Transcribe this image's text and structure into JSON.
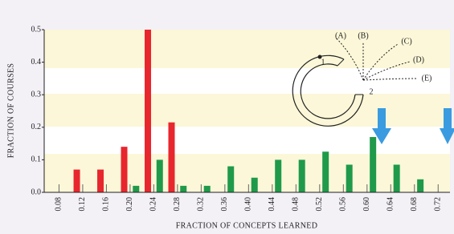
{
  "chart_data": {
    "type": "bar",
    "xlabel": "FRACTION OF CONCEPTS LEARNED",
    "ylabel": "FRACTION OF COURSES",
    "xlim": [
      0.055,
      0.74
    ],
    "ylim": [
      0,
      0.5
    ],
    "xticks": [
      0.08,
      0.12,
      0.16,
      {
        "value": 0.2,
        "label": "0.20"
      },
      0.24,
      0.28,
      0.32,
      0.36,
      {
        "value": 0.4,
        "label": "0.40"
      },
      0.44,
      0.48,
      0.52,
      0.56,
      {
        "value": 0.6,
        "label": "0.60"
      },
      0.64,
      0.68,
      0.72
    ],
    "yticks": [
      {
        "value": 0,
        "label": "0.0"
      },
      0.1,
      0.2,
      0.3,
      0.4,
      0.5
    ],
    "series": [
      {
        "color": "#e8262e",
        "x": [
          0.11,
          0.15,
          0.19,
          0.23,
          0.27
        ],
        "values": [
          0.07,
          0.07,
          0.14,
          0.5,
          0.215
        ]
      },
      {
        "color": "#1f9a4a",
        "x": [
          0.21,
          0.25,
          0.29,
          0.33,
          0.37,
          0.41,
          0.45,
          0.49,
          0.53,
          0.57,
          0.61,
          0.65,
          0.69
        ],
        "values": [
          0.02,
          0.1,
          0.02,
          0.02,
          0.08,
          0.045,
          0.1,
          0.1,
          0.125,
          0.085,
          0.17,
          0.085,
          0.04
        ]
      }
    ],
    "annotations": [
      "1",
      "2",
      "(A)",
      "(B)",
      "(C)",
      "(D)",
      "(E)"
    ]
  }
}
